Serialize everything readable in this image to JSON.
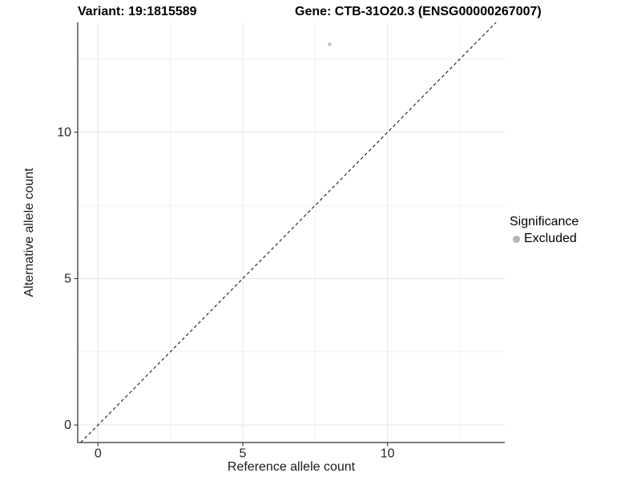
{
  "header": {
    "variant_title": "Variant: 19:1815589",
    "gene_title": "Gene: CTB-31O20.3 (ENSG00000267007)"
  },
  "legend": {
    "title": "Significance",
    "items": [
      {
        "label": "Excluded",
        "color": "#b3b3b3",
        "marker": "circle"
      }
    ]
  },
  "colors": {
    "background": "#ffffff",
    "grid_major": "#e5e5e5",
    "grid_minor": "#f0f0f0",
    "axis_line": "#333333",
    "tick_mark": "#333333",
    "tick_label": "#262626",
    "axis_title": "#1a1a1a",
    "title_text": "#000000",
    "point_excluded": "#c0c0c0",
    "identity_line": "#1a1a1a"
  },
  "chart_data": {
    "type": "scatter",
    "title": "Variant: 19:1815589 / Gene: CTB-31O20.3 (ENSG00000267007)",
    "xlabel": "Reference allele count",
    "ylabel": "Alternative allele count",
    "xlim": [
      -0.7,
      14.05
    ],
    "ylim": [
      -0.6,
      13.75
    ],
    "x_major_ticks": [
      0,
      5,
      10
    ],
    "y_major_ticks": [
      0,
      5,
      10
    ],
    "x_minor_gridlines": [
      2.5,
      7.5,
      12.5
    ],
    "y_minor_gridlines": [
      2.5,
      7.5,
      12.5
    ],
    "grid": true,
    "legend_position": "right",
    "series": [
      {
        "name": "Excluded",
        "color": "#c0c0c0",
        "point_radius": 2.3,
        "points": [
          {
            "x": 8,
            "y": 13
          }
        ]
      }
    ],
    "reference_line": {
      "kind": "identity",
      "slope": 1,
      "intercept": 0,
      "style": "dashed",
      "dash": [
        4,
        3.2
      ],
      "color": "#1a1a1a"
    }
  }
}
